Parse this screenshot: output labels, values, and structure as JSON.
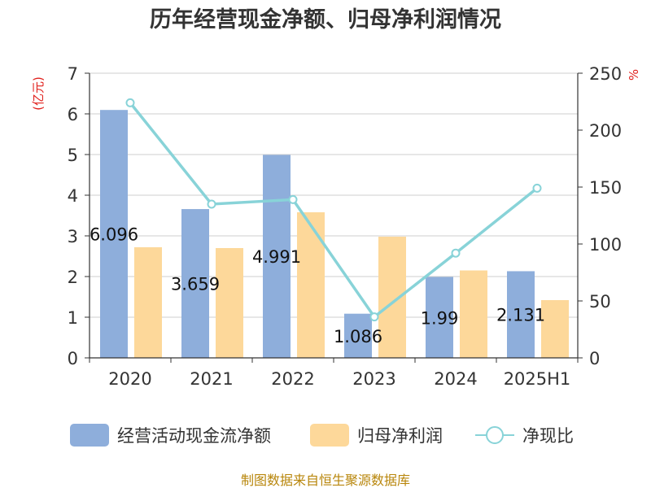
{
  "chart_data": {
    "type": "bar",
    "title": "历年经营现金净额、归母净利润情况",
    "categories": [
      "2020",
      "2021",
      "2022",
      "2023",
      "2024",
      "2025H1"
    ],
    "series": [
      {
        "name": "经营活动现金流净额",
        "type": "bar",
        "axis": "left",
        "color": "#8eaedb",
        "values": [
          6.096,
          3.659,
          4.991,
          1.086,
          1.99,
          2.131
        ],
        "labels": [
          "6.096",
          "3.659",
          "4.991",
          "1.086",
          "1.99",
          "2.131"
        ]
      },
      {
        "name": "归母净利润",
        "type": "bar",
        "axis": "left",
        "color": "#fdd89a",
        "values": [
          2.72,
          2.7,
          3.58,
          2.98,
          2.15,
          1.42
        ]
      },
      {
        "name": "净现比",
        "type": "line",
        "axis": "right",
        "color": "#88d3d8",
        "values": [
          224,
          135,
          139,
          36,
          92,
          149
        ]
      }
    ],
    "y_left": {
      "unit": "(亿元)",
      "ylim": [
        0,
        7
      ],
      "ticks": [
        "0",
        "1",
        "2",
        "3",
        "4",
        "5",
        "6",
        "7"
      ]
    },
    "y_right": {
      "unit": "%",
      "ylim": [
        0,
        250
      ],
      "ticks": [
        "0",
        "50",
        "100",
        "150",
        "200",
        "250"
      ]
    },
    "grid": true,
    "legend": "bottom",
    "source": "制图数据来自恒生聚源数据库"
  }
}
